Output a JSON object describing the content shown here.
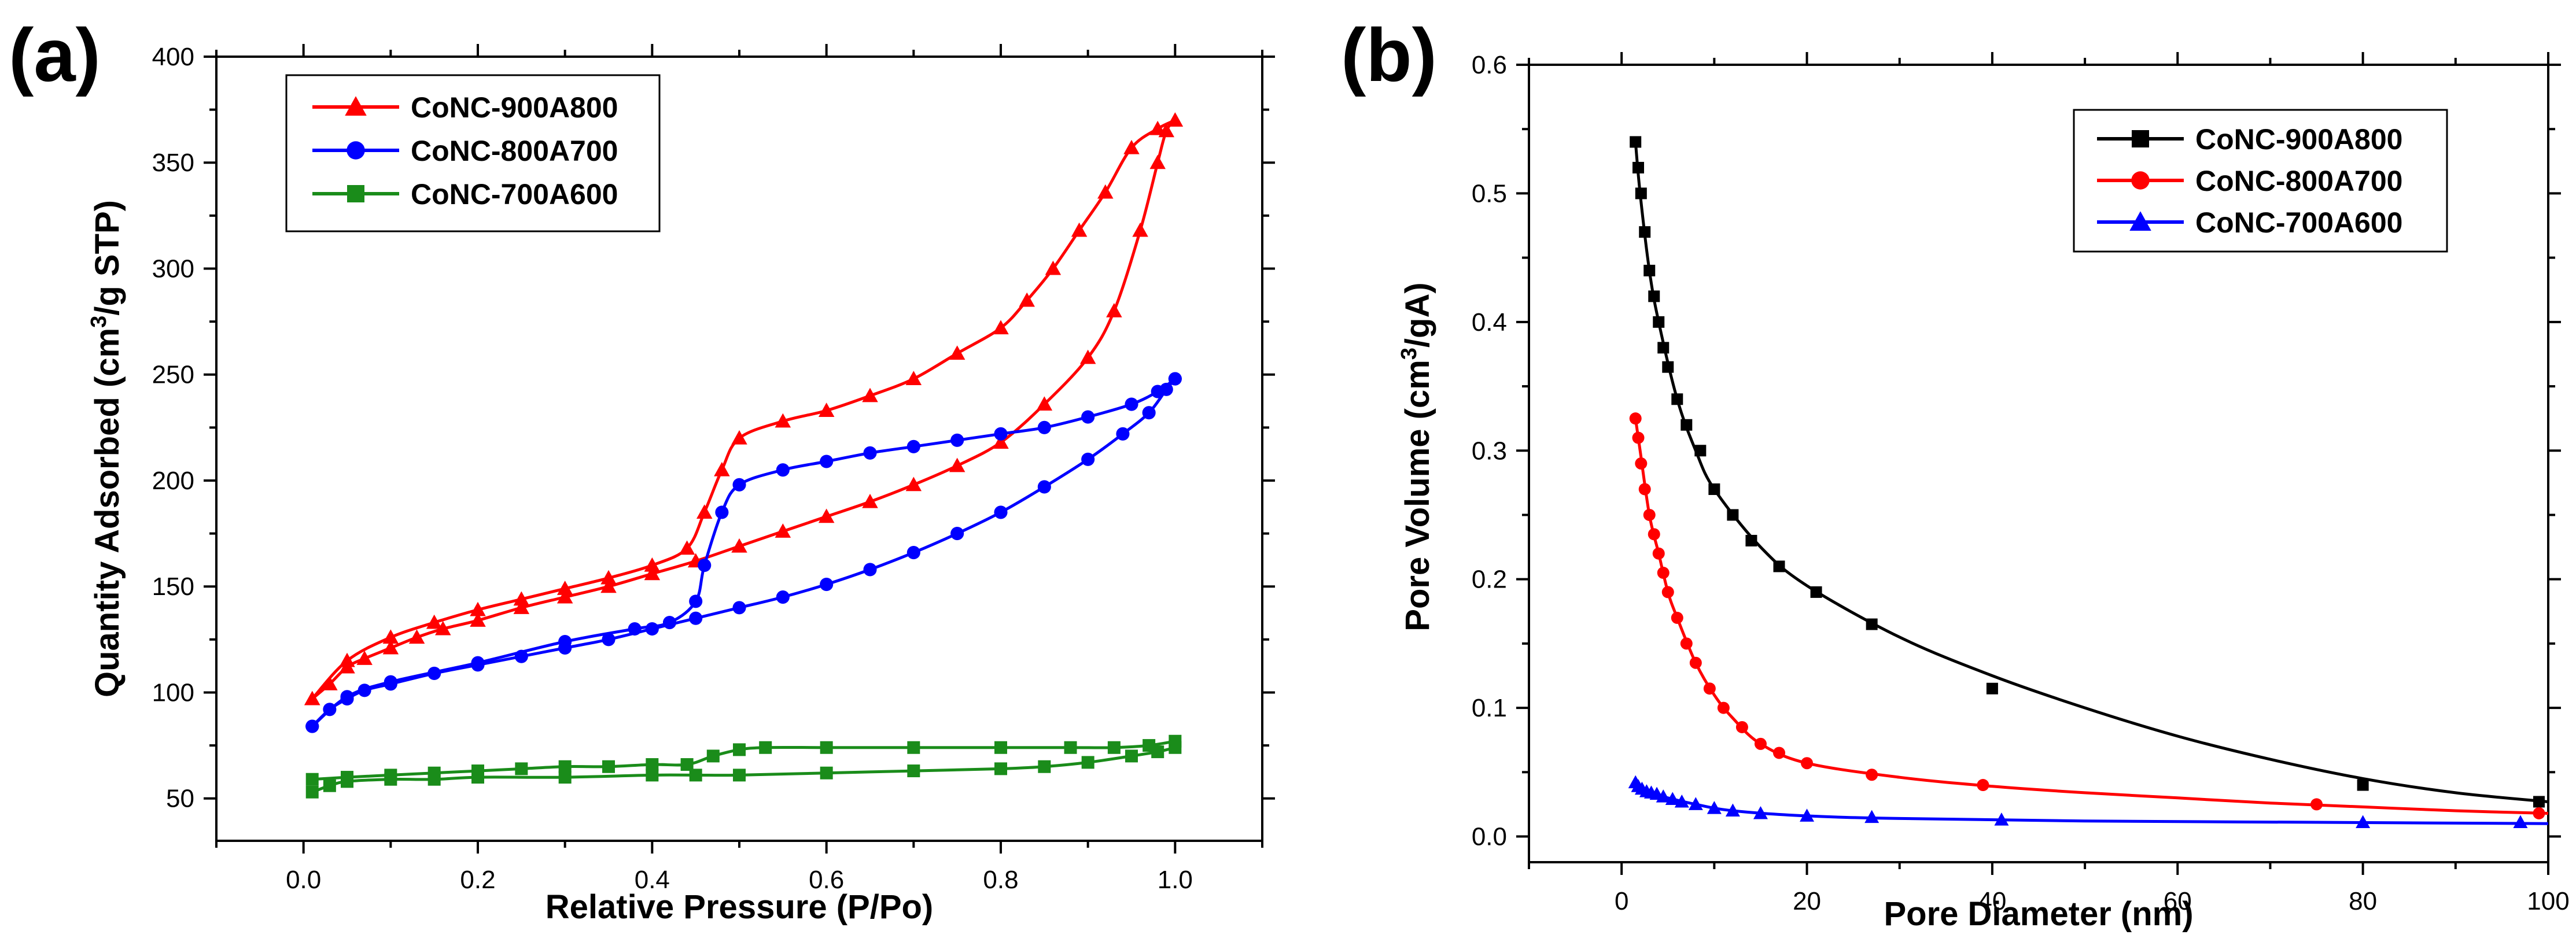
{
  "chart_data": [
    {
      "panel_label": "(a)",
      "type": "line",
      "xlabel": "Relative Pressure (P/Po)",
      "ylabel_pre": "Quantity Adsorbed (cm",
      "ylabel_sup": "3",
      "ylabel_post": "/g STP)",
      "xlim": [
        -0.1,
        1.1
      ],
      "ylim": [
        30,
        400
      ],
      "xticks": [
        0.0,
        0.2,
        0.4,
        0.6,
        0.8,
        1.0
      ],
      "xtick_labels": [
        "0.0",
        "0.2",
        "0.4",
        "0.6",
        "0.8",
        "1.0"
      ],
      "yticks": [
        50,
        100,
        150,
        200,
        250,
        300,
        350,
        400
      ],
      "ytick_labels": [
        "50",
        "100",
        "150",
        "200",
        "250",
        "300",
        "350",
        "400"
      ],
      "legend_position": "top-left",
      "series": [
        {
          "name": "CoNC-900A800",
          "color": "#ff0000",
          "marker": "triangle",
          "adsorption": [
            [
              0.01,
              97
            ],
            [
              0.03,
              104
            ],
            [
              0.05,
              112
            ],
            [
              0.07,
              116
            ],
            [
              0.1,
              121
            ],
            [
              0.13,
              126
            ],
            [
              0.16,
              130
            ],
            [
              0.2,
              134
            ],
            [
              0.25,
              140
            ],
            [
              0.3,
              145
            ],
            [
              0.35,
              150
            ],
            [
              0.4,
              156
            ],
            [
              0.45,
              162
            ],
            [
              0.5,
              169
            ],
            [
              0.55,
              176
            ],
            [
              0.6,
              183
            ],
            [
              0.65,
              190
            ],
            [
              0.7,
              198
            ],
            [
              0.75,
              207
            ],
            [
              0.8,
              218
            ],
            [
              0.85,
              236
            ],
            [
              0.9,
              258
            ],
            [
              0.93,
              280
            ],
            [
              0.96,
              318
            ],
            [
              0.98,
              350
            ],
            [
              0.99,
              365
            ],
            [
              1.0,
              370
            ]
          ],
          "desorption": [
            [
              1.0,
              370
            ],
            [
              0.98,
              366
            ],
            [
              0.95,
              357
            ],
            [
              0.92,
              336
            ],
            [
              0.89,
              318
            ],
            [
              0.86,
              300
            ],
            [
              0.83,
              285
            ],
            [
              0.8,
              272
            ],
            [
              0.75,
              260
            ],
            [
              0.7,
              248
            ],
            [
              0.65,
              240
            ],
            [
              0.6,
              233
            ],
            [
              0.55,
              228
            ],
            [
              0.5,
              220
            ],
            [
              0.48,
              205
            ],
            [
              0.46,
              185
            ],
            [
              0.44,
              168
            ],
            [
              0.4,
              160
            ],
            [
              0.35,
              154
            ],
            [
              0.3,
              149
            ],
            [
              0.25,
              144
            ],
            [
              0.2,
              139
            ],
            [
              0.15,
              133
            ],
            [
              0.1,
              126
            ],
            [
              0.05,
              115
            ],
            [
              0.01,
              97
            ]
          ]
        },
        {
          "name": "CoNC-800A700",
          "color": "#0000ff",
          "marker": "circle",
          "adsorption": [
            [
              0.01,
              84
            ],
            [
              0.03,
              92
            ],
            [
              0.05,
              97
            ],
            [
              0.07,
              101
            ],
            [
              0.1,
              104
            ],
            [
              0.15,
              109
            ],
            [
              0.2,
              113
            ],
            [
              0.25,
              117
            ],
            [
              0.3,
              121
            ],
            [
              0.35,
              125
            ],
            [
              0.4,
              130
            ],
            [
              0.45,
              135
            ],
            [
              0.5,
              140
            ],
            [
              0.55,
              145
            ],
            [
              0.6,
              151
            ],
            [
              0.65,
              158
            ],
            [
              0.7,
              166
            ],
            [
              0.75,
              175
            ],
            [
              0.8,
              185
            ],
            [
              0.85,
              197
            ],
            [
              0.9,
              210
            ],
            [
              0.94,
              222
            ],
            [
              0.97,
              232
            ],
            [
              0.99,
              243
            ],
            [
              1.0,
              248
            ]
          ],
          "desorption": [
            [
              1.0,
              248
            ],
            [
              0.98,
              242
            ],
            [
              0.95,
              236
            ],
            [
              0.9,
              230
            ],
            [
              0.85,
              225
            ],
            [
              0.8,
              222
            ],
            [
              0.75,
              219
            ],
            [
              0.7,
              216
            ],
            [
              0.65,
              213
            ],
            [
              0.6,
              209
            ],
            [
              0.55,
              205
            ],
            [
              0.5,
              198
            ],
            [
              0.48,
              185
            ],
            [
              0.46,
              160
            ],
            [
              0.45,
              143
            ],
            [
              0.42,
              133
            ],
            [
              0.38,
              130
            ],
            [
              0.3,
              124
            ],
            [
              0.2,
              114
            ],
            [
              0.1,
              105
            ],
            [
              0.05,
              98
            ],
            [
              0.01,
              84
            ]
          ]
        },
        {
          "name": "CoNC-700A600",
          "color": "#1a8c1a",
          "marker": "square",
          "adsorption": [
            [
              0.01,
              53
            ],
            [
              0.03,
              56
            ],
            [
              0.05,
              58
            ],
            [
              0.1,
              59
            ],
            [
              0.15,
              59
            ],
            [
              0.2,
              60
            ],
            [
              0.3,
              60
            ],
            [
              0.4,
              61
            ],
            [
              0.45,
              61
            ],
            [
              0.5,
              61
            ],
            [
              0.6,
              62
            ],
            [
              0.7,
              63
            ],
            [
              0.8,
              64
            ],
            [
              0.85,
              65
            ],
            [
              0.9,
              67
            ],
            [
              0.95,
              70
            ],
            [
              0.98,
              72
            ],
            [
              1.0,
              74
            ]
          ],
          "desorption": [
            [
              1.0,
              77
            ],
            [
              0.97,
              75
            ],
            [
              0.93,
              74
            ],
            [
              0.88,
              74
            ],
            [
              0.8,
              74
            ],
            [
              0.7,
              74
            ],
            [
              0.6,
              74
            ],
            [
              0.53,
              74
            ],
            [
              0.5,
              73
            ],
            [
              0.47,
              70
            ],
            [
              0.44,
              66
            ],
            [
              0.4,
              66
            ],
            [
              0.35,
              65
            ],
            [
              0.3,
              65
            ],
            [
              0.25,
              64
            ],
            [
              0.2,
              63
            ],
            [
              0.15,
              62
            ],
            [
              0.1,
              61
            ],
            [
              0.05,
              60
            ],
            [
              0.01,
              59
            ]
          ]
        }
      ]
    },
    {
      "panel_label": "(b)",
      "type": "line",
      "xlabel": "Pore Diameter (nm)",
      "ylabel_pre": "Pore Volume (cm",
      "ylabel_sup": "3",
      "ylabel_post": "/gA)",
      "xlim": [
        -10,
        100
      ],
      "ylim": [
        -0.02,
        0.6
      ],
      "xticks": [
        0,
        20,
        40,
        60,
        80,
        100
      ],
      "xtick_labels": [
        "0",
        "20",
        "40",
        "60",
        "80",
        "100"
      ],
      "yticks": [
        0.0,
        0.1,
        0.2,
        0.3,
        0.4,
        0.5,
        0.6
      ],
      "ytick_labels": [
        "0.0",
        "0.1",
        "0.2",
        "0.3",
        "0.4",
        "0.5",
        "0.6"
      ],
      "legend_position": "top-right",
      "series": [
        {
          "name": "CoNC-900A800",
          "color": "#000000",
          "marker": "square",
          "points": [
            [
              1.5,
              0.54
            ],
            [
              1.8,
              0.52
            ],
            [
              2.1,
              0.5
            ],
            [
              2.5,
              0.47
            ],
            [
              3.0,
              0.44
            ],
            [
              3.5,
              0.42
            ],
            [
              4.0,
              0.4
            ],
            [
              4.5,
              0.38
            ],
            [
              5.0,
              0.365
            ],
            [
              6.0,
              0.34
            ],
            [
              7.0,
              0.32
            ],
            [
              8.5,
              0.3
            ],
            [
              10.0,
              0.27
            ],
            [
              12.0,
              0.25
            ],
            [
              14.0,
              0.23
            ],
            [
              17.0,
              0.21
            ],
            [
              21.0,
              0.19
            ],
            [
              27.0,
              0.165
            ],
            [
              40.0,
              0.115
            ],
            [
              80.0,
              0.04
            ],
            [
              99.0,
              0.027
            ]
          ],
          "curve": [
            [
              1.5,
              0.54
            ],
            [
              2.0,
              0.5
            ],
            [
              3.0,
              0.44
            ],
            [
              4.0,
              0.4
            ],
            [
              6.0,
              0.34
            ],
            [
              8.0,
              0.3
            ],
            [
              10.0,
              0.27
            ],
            [
              15.0,
              0.225
            ],
            [
              20.0,
              0.195
            ],
            [
              30.0,
              0.155
            ],
            [
              40.0,
              0.125
            ],
            [
              50.0,
              0.1
            ],
            [
              60.0,
              0.078
            ],
            [
              70.0,
              0.06
            ],
            [
              80.0,
              0.045
            ],
            [
              90.0,
              0.034
            ],
            [
              100.0,
              0.027
            ]
          ]
        },
        {
          "name": "CoNC-800A700",
          "color": "#ff0000",
          "marker": "circle",
          "points": [
            [
              1.5,
              0.325
            ],
            [
              1.8,
              0.31
            ],
            [
              2.1,
              0.29
            ],
            [
              2.5,
              0.27
            ],
            [
              3.0,
              0.25
            ],
            [
              3.5,
              0.235
            ],
            [
              4.0,
              0.22
            ],
            [
              4.5,
              0.205
            ],
            [
              5.0,
              0.19
            ],
            [
              6.0,
              0.17
            ],
            [
              7.0,
              0.15
            ],
            [
              8.0,
              0.135
            ],
            [
              9.5,
              0.115
            ],
            [
              11.0,
              0.1
            ],
            [
              13.0,
              0.085
            ],
            [
              15.0,
              0.072
            ],
            [
              17.0,
              0.065
            ],
            [
              20.0,
              0.057
            ],
            [
              27.0,
              0.048
            ],
            [
              39.0,
              0.04
            ],
            [
              75.0,
              0.025
            ],
            [
              99.0,
              0.018
            ]
          ],
          "curve": [
            [
              1.5,
              0.325
            ],
            [
              2.0,
              0.3
            ],
            [
              3.0,
              0.25
            ],
            [
              4.0,
              0.22
            ],
            [
              5.0,
              0.19
            ],
            [
              6.0,
              0.17
            ],
            [
              8.0,
              0.135
            ],
            [
              10.0,
              0.11
            ],
            [
              12.0,
              0.092
            ],
            [
              15.0,
              0.072
            ],
            [
              20.0,
              0.057
            ],
            [
              30.0,
              0.046
            ],
            [
              40.0,
              0.039
            ],
            [
              50.0,
              0.034
            ],
            [
              60.0,
              0.03
            ],
            [
              70.0,
              0.026
            ],
            [
              80.0,
              0.023
            ],
            [
              90.0,
              0.02
            ],
            [
              100.0,
              0.018
            ]
          ]
        },
        {
          "name": "CoNC-700A600",
          "color": "#0000ff",
          "marker": "triangle",
          "points": [
            [
              1.5,
              0.042
            ],
            [
              1.8,
              0.039
            ],
            [
              2.2,
              0.037
            ],
            [
              2.7,
              0.035
            ],
            [
              3.2,
              0.034
            ],
            [
              3.8,
              0.033
            ],
            [
              4.5,
              0.031
            ],
            [
              5.5,
              0.029
            ],
            [
              6.5,
              0.027
            ],
            [
              8.0,
              0.025
            ],
            [
              10.0,
              0.022
            ],
            [
              12.0,
              0.02
            ],
            [
              15.0,
              0.018
            ],
            [
              20.0,
              0.016
            ],
            [
              27.0,
              0.015
            ],
            [
              41.0,
              0.013
            ],
            [
              80.0,
              0.011
            ],
            [
              97.0,
              0.011
            ]
          ],
          "curve": [
            [
              1.5,
              0.042
            ],
            [
              2.0,
              0.038
            ],
            [
              3.0,
              0.034
            ],
            [
              5.0,
              0.03
            ],
            [
              8.0,
              0.025
            ],
            [
              12.0,
              0.02
            ],
            [
              20.0,
              0.016
            ],
            [
              30.0,
              0.014
            ],
            [
              50.0,
              0.012
            ],
            [
              75.0,
              0.011
            ],
            [
              100.0,
              0.01
            ]
          ]
        }
      ]
    }
  ]
}
